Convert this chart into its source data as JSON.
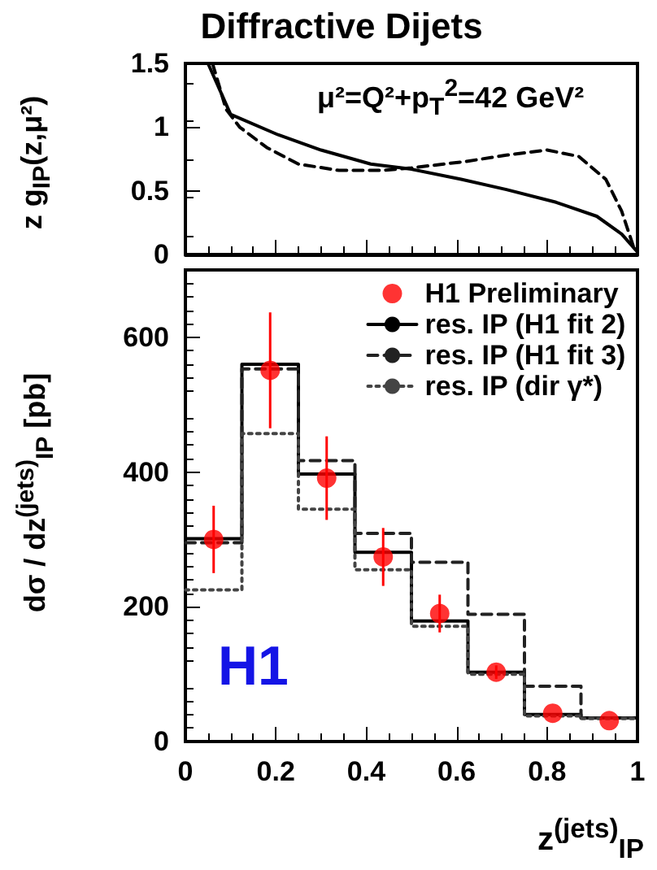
{
  "chart_data": [
    {
      "type": "line",
      "title": "Diffractive Dijets",
      "ylabel": "z g$_{IP}$(z,μ²)",
      "annotations": [
        "μ²=Q²+p$_{T}$$^{2}$=42 GeV²"
      ],
      "marker": "none",
      "xlim": [
        0,
        1
      ],
      "ylim": [
        0,
        1.5
      ],
      "xticks": [
        {
          "value": 0,
          "label": null
        },
        {
          "value": 0.2,
          "label": null
        },
        {
          "value": 0.4,
          "label": null
        },
        {
          "value": 0.6,
          "label": null
        },
        {
          "value": 0.8,
          "label": null
        },
        {
          "value": 1,
          "label": null
        }
      ],
      "yticks": [
        0,
        0.5,
        1,
        1.5
      ],
      "tick_labels": "y",
      "series": [
        {
          "color": "#000000",
          "line_style": "solid",
          "x": [
            0.05,
            0.1,
            0.205,
            0.3,
            0.41,
            0.5,
            0.61,
            0.71,
            0.82,
            0.91,
            0.965,
            1.0
          ],
          "values": [
            1.5,
            1.1,
            0.94,
            0.82,
            0.71,
            0.67,
            0.59,
            0.51,
            0.41,
            0.3,
            0.16,
            0.02
          ]
        },
        {
          "color": "#000000",
          "line_style": "dashed",
          "x": [
            0.06,
            0.09,
            0.12,
            0.18,
            0.25,
            0.34,
            0.435,
            0.5,
            0.62,
            0.71,
            0.8,
            0.87,
            0.93,
            0.965,
            0.98,
            0.995
          ],
          "values": [
            1.5,
            1.14,
            1.0,
            0.84,
            0.71,
            0.66,
            0.66,
            0.68,
            0.73,
            0.78,
            0.82,
            0.77,
            0.59,
            0.34,
            0.18,
            0.02
          ]
        }
      ]
    },
    {
      "type": "histogram",
      "ylabel": "dσ / dz$^{(jets)}$$_{IP}$ [pb]",
      "xlabel": "z$^{(jets)}$$_{IP}$",
      "annotations": [
        "H1"
      ],
      "legend": "top right",
      "xlim": [
        0,
        1
      ],
      "ylim": [
        0,
        700
      ],
      "xticks": [
        0,
        0.2,
        0.4,
        0.6,
        0.8,
        1
      ],
      "yticks": [
        0,
        200,
        400,
        600
      ],
      "bins": [
        0,
        0.125,
        0.25,
        0.375,
        0.5,
        0.625,
        0.75,
        0.875,
        1
      ],
      "series": [
        {
          "name": "H1 Preliminary",
          "type": "scatter",
          "marker": "circle",
          "color": "#ff0000",
          "x": [
            0.0625,
            0.1875,
            0.3125,
            0.4375,
            0.5625,
            0.6875,
            0.8125,
            0.9375
          ],
          "values": [
            300,
            551,
            391,
            274,
            190,
            103,
            42,
            31
          ],
          "errors": [
            50,
            86,
            62,
            43,
            28,
            10,
            null,
            null
          ]
        },
        {
          "name": "res. IP (H1 fit 2)",
          "color": "#000000",
          "line_style": "solid",
          "values": [
            301,
            560,
            397,
            281,
            179,
            103,
            40,
            35
          ]
        },
        {
          "name": "res. IP (H1 fit 3)",
          "color": "#222222",
          "line_style": "dashed",
          "values": [
            295,
            553,
            417,
            309,
            266,
            189,
            82,
            35
          ]
        },
        {
          "name": "res. IP (dir γ*)",
          "color": "#444444",
          "line_style": "dotted",
          "values": [
            225,
            457,
            345,
            255,
            171,
            100,
            38,
            34
          ]
        }
      ]
    }
  ]
}
